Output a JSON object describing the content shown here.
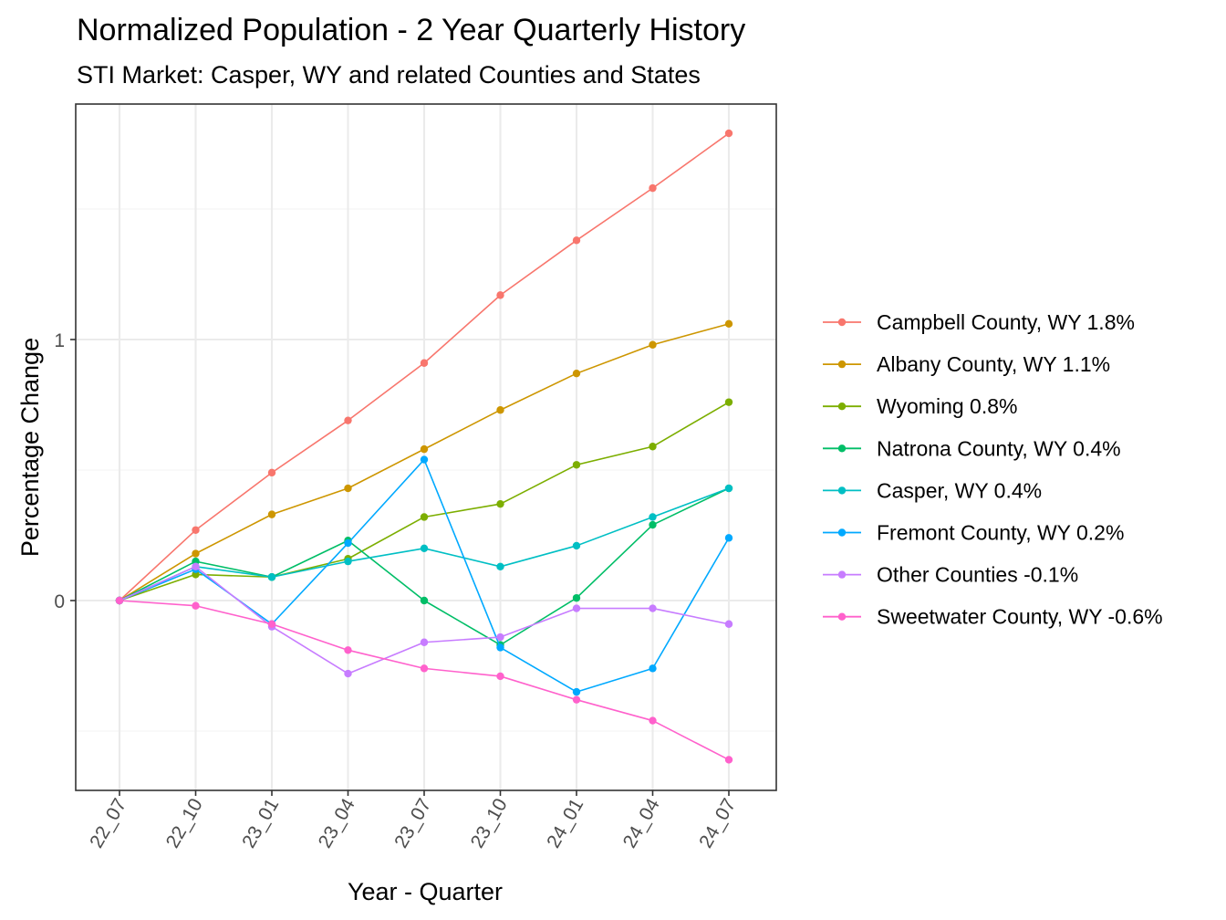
{
  "chart_data": {
    "type": "line",
    "title": "Normalized Population - 2 Year Quarterly History",
    "subtitle": "STI Market: Casper, WY and related Counties and States",
    "xlabel": "Year - Quarter",
    "ylabel": "Percentage Change",
    "categories": [
      "22_07",
      "22_10",
      "23_01",
      "23_04",
      "23_07",
      "23_10",
      "24_01",
      "24_04",
      "24_07"
    ],
    "ylim": [
      -0.72,
      1.9
    ],
    "y_ticks": [
      0,
      1
    ],
    "y_tick_labels": [
      "0",
      "1"
    ],
    "y_minor_ticks": [
      -0.5,
      0.5,
      1.5
    ],
    "grid": true,
    "legend_position": "right",
    "series": [
      {
        "name": "Campbell County, WY 1.8%",
        "color": "#F8766D",
        "values": [
          0,
          0.27,
          0.49,
          0.69,
          0.91,
          1.17,
          1.38,
          1.58,
          1.79
        ]
      },
      {
        "name": "Albany County, WY 1.1%",
        "color": "#CD9600",
        "values": [
          0,
          0.18,
          0.33,
          0.43,
          0.58,
          0.73,
          0.87,
          0.98,
          1.06
        ]
      },
      {
        "name": "Wyoming 0.8%",
        "color": "#7CAE00",
        "values": [
          0,
          0.1,
          0.09,
          0.16,
          0.32,
          0.37,
          0.52,
          0.59,
          0.76
        ]
      },
      {
        "name": "Natrona County, WY 0.4%",
        "color": "#00BE67",
        "values": [
          0,
          0.15,
          0.09,
          0.23,
          0.0,
          -0.17,
          0.01,
          0.29,
          0.43
        ]
      },
      {
        "name": "Casper, WY 0.4%",
        "color": "#00BFC4",
        "values": [
          0,
          0.13,
          0.09,
          0.15,
          0.2,
          0.13,
          0.21,
          0.32,
          0.43
        ]
      },
      {
        "name": "Fremont County, WY 0.2%",
        "color": "#00A9FF",
        "values": [
          0,
          0.12,
          -0.09,
          0.22,
          0.54,
          -0.18,
          -0.35,
          -0.26,
          0.24
        ]
      },
      {
        "name": "Other Counties -0.1%",
        "color": "#C77CFF",
        "values": [
          0,
          0.13,
          -0.1,
          -0.28,
          -0.16,
          -0.14,
          -0.03,
          -0.03,
          -0.09
        ]
      },
      {
        "name": "Sweetwater County, WY -0.6%",
        "color": "#FF61CC",
        "values": [
          0,
          -0.02,
          -0.09,
          -0.19,
          -0.26,
          -0.29,
          -0.38,
          -0.46,
          -0.61
        ]
      }
    ]
  }
}
